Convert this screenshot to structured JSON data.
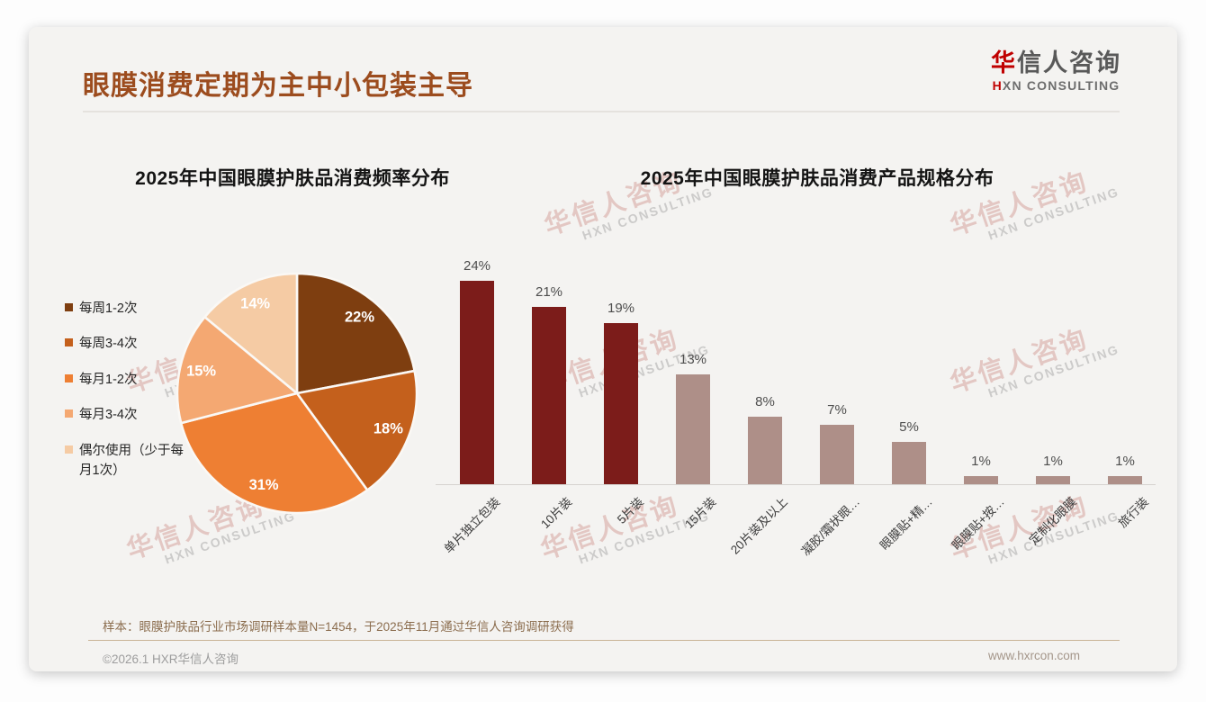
{
  "page": {
    "title": "眼膜消费定期为主中小包装主导"
  },
  "brand": {
    "logo_zh_accent": "华",
    "logo_zh_rest": "信人咨询",
    "logo_en_accent": "H",
    "logo_en_rest": "XN CONSULTING",
    "accent_color": "#C00000",
    "watermark_zh": "华信人咨询",
    "watermark_en": "HXN CONSULTING"
  },
  "footer": {
    "note": "样本：眼膜护肤品行业市场调研样本量N=1454，于2025年11月通过华信人咨询调研获得",
    "copyright": "©2026.1 HXR华信人咨询",
    "website": "www.hxrcon.com"
  },
  "chart_data": [
    {
      "type": "pie",
      "title": "2025年中国眼膜护肤品消费频率分布",
      "labels": [
        "每周1-2次",
        "每周3-4次",
        "每月1-2次",
        "每月3-4次",
        "偶尔使用（少于每月1次）"
      ],
      "values": [
        22,
        18,
        31,
        15,
        14
      ],
      "colors": [
        "#7E3E10",
        "#C4601C",
        "#EE7F33",
        "#F4A872",
        "#F5CBA4"
      ],
      "start_angle_deg": 0,
      "direction": "clockwise",
      "legend_position": "left",
      "data_labels": "percent-inside",
      "data_label_color": "#FFFFFF"
    },
    {
      "type": "bar",
      "title": "2025年中国眼膜护肤品消费产品规格分布",
      "categories": [
        "单片独立包装",
        "10片装",
        "5片装",
        "15片装",
        "20片装及以上",
        "凝胶/霜状眼…",
        "眼膜贴+精…",
        "眼膜贴+按…",
        "定制化眼膜",
        "旅行装"
      ],
      "values": [
        24,
        21,
        19,
        13,
        8,
        7,
        5,
        1,
        1,
        1
      ],
      "bar_colors": [
        "#7C1C1A",
        "#7C1C1A",
        "#7C1C1A",
        "#AE8F88",
        "#AE8F88",
        "#AE8F88",
        "#AE8F88",
        "#AE8F88",
        "#AE8F88",
        "#AE8F88"
      ],
      "value_suffix": "%",
      "ylim": [
        0,
        26
      ],
      "gridlines": false,
      "value_label_position": "above"
    }
  ]
}
